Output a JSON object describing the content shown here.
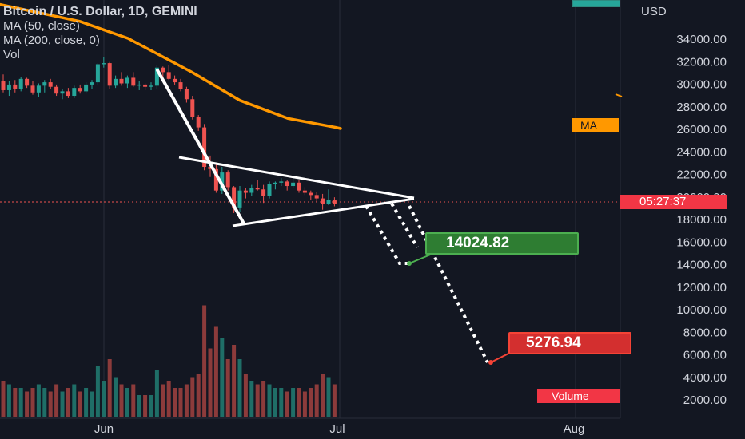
{
  "legend": {
    "title": "Bitcoin / U.S. Dollar, 1D, GEMINI",
    "ma50": "MA (50, close)",
    "ma200": "MA (200, close, 0)",
    "vol": "Vol"
  },
  "price_axis": {
    "currency": "USD",
    "ticks": [
      "34000.00",
      "32000.00",
      "30000.00",
      "28000.00",
      "26000.00",
      "24000.00",
      "22000.00",
      "20000.00",
      "18000.00",
      "16000.00",
      "14000.00",
      "12000.00",
      "10000.00",
      "8000.00",
      "6000.00",
      "4000.00",
      "2000.00"
    ]
  },
  "time_axis": {
    "labels": [
      "Jun",
      "Jul",
      "Aug"
    ]
  },
  "badges": {
    "ma": "MA",
    "countdown": "05:27:37",
    "volume": "Volume",
    "target1": "14024.82",
    "target2": "5276.94"
  },
  "colors": {
    "background": "#131722",
    "up": "#26a69a",
    "down": "#ef5350",
    "ma": "#ff9800",
    "drawing": "#ffffff",
    "target1": "#2e7d32",
    "target2": "#d32f2f"
  },
  "chart_data": {
    "type": "candlestick",
    "symbol": "Bitcoin / U.S. Dollar",
    "interval": "1D",
    "exchange": "GEMINI",
    "ylim": [
      0,
      36000
    ],
    "current_price_countdown": "05:27:37",
    "candles": [
      [
        30200,
        30800,
        29200,
        29400,
        1
      ],
      [
        29400,
        30200,
        28900,
        29900,
        0.9
      ],
      [
        29900,
        30300,
        29200,
        29500,
        0.8
      ],
      [
        29500,
        30600,
        29300,
        30400,
        0.8
      ],
      [
        30400,
        30500,
        29600,
        29800,
        0.7
      ],
      [
        29800,
        30200,
        29000,
        29200,
        0.8
      ],
      [
        29200,
        30000,
        28800,
        29800,
        0.9
      ],
      [
        29800,
        30300,
        29200,
        30100,
        0.8
      ],
      [
        30100,
        30400,
        29500,
        29700,
        0.7
      ],
      [
        29700,
        29900,
        28900,
        29100,
        0.9
      ],
      [
        29100,
        29500,
        28600,
        29300,
        0.7
      ],
      [
        29300,
        29600,
        28700,
        28900,
        0.8
      ],
      [
        28900,
        29800,
        28700,
        29600,
        0.9
      ],
      [
        29600,
        29900,
        29100,
        29300,
        0.7
      ],
      [
        29300,
        30100,
        29100,
        29900,
        0.8
      ],
      [
        29900,
        30300,
        29500,
        30100,
        0.7
      ],
      [
        30100,
        31800,
        29900,
        31700,
        1.4
      ],
      [
        31700,
        32300,
        31400,
        31800,
        1.0
      ],
      [
        31800,
        31900,
        29500,
        29800,
        1.6
      ],
      [
        29800,
        30700,
        29600,
        30400,
        1.1
      ],
      [
        30400,
        31000,
        29800,
        30000,
        0.9
      ],
      [
        30000,
        30700,
        29600,
        30500,
        0.8
      ],
      [
        30500,
        31000,
        29700,
        29800,
        0.9
      ],
      [
        29800,
        30200,
        29400,
        29900,
        0.6
      ],
      [
        29900,
        30000,
        29400,
        29700,
        0.6
      ],
      [
        29700,
        30100,
        29400,
        29800,
        0.6
      ],
      [
        29800,
        31600,
        29500,
        31400,
        1.3
      ],
      [
        31400,
        31500,
        30600,
        31000,
        0.9
      ],
      [
        31000,
        31600,
        30300,
        30400,
        1.0
      ],
      [
        30400,
        30700,
        29900,
        30100,
        0.8
      ],
      [
        30100,
        30400,
        29300,
        29500,
        0.8
      ],
      [
        29500,
        29700,
        28300,
        28600,
        0.9
      ],
      [
        28600,
        28900,
        26800,
        27000,
        1.1
      ],
      [
        27000,
        27200,
        25800,
        26100,
        1.2
      ],
      [
        26100,
        26400,
        22300,
        22600,
        3.1
      ],
      [
        22600,
        23600,
        21700,
        22400,
        1.9
      ],
      [
        22400,
        22900,
        20300,
        20500,
        2.5
      ],
      [
        20500,
        22600,
        20200,
        22100,
        2.2
      ],
      [
        22100,
        22300,
        20500,
        20800,
        1.6
      ],
      [
        20800,
        20900,
        18500,
        19000,
        2.0
      ],
      [
        19000,
        20900,
        18600,
        20500,
        1.6
      ],
      [
        20500,
        20700,
        19800,
        20300,
        1.2
      ],
      [
        20300,
        21000,
        20000,
        20700,
        1.0
      ],
      [
        20700,
        21400,
        20500,
        20600,
        0.9
      ],
      [
        20600,
        21000,
        19400,
        20000,
        1.0
      ],
      [
        20000,
        21300,
        19800,
        21100,
        0.9
      ],
      [
        21100,
        21300,
        20600,
        21200,
        0.8
      ],
      [
        21200,
        21600,
        20900,
        21300,
        0.8
      ],
      [
        21300,
        21400,
        20500,
        20900,
        0.7
      ],
      [
        20900,
        21600,
        20700,
        21200,
        0.8
      ],
      [
        21200,
        21400,
        20300,
        20500,
        0.8
      ],
      [
        20500,
        20800,
        20100,
        20300,
        0.7
      ],
      [
        20300,
        20500,
        19700,
        20100,
        0.8
      ],
      [
        20100,
        20400,
        19500,
        19800,
        0.9
      ],
      [
        19800,
        20200,
        18800,
        19300,
        1.2
      ],
      [
        19300,
        20600,
        19200,
        19700,
        1.1
      ],
      [
        19700,
        19900,
        19100,
        19300,
        0.9
      ]
    ],
    "moving_average_50": [
      [
        0,
        37000
      ],
      [
        100,
        35500
      ],
      [
        160,
        34000
      ],
      [
        240,
        31000
      ],
      [
        300,
        28500
      ],
      [
        360,
        26900
      ],
      [
        420,
        26100
      ],
      [
        426,
        26000
      ]
    ],
    "drawings": {
      "flagpole": [
        [
          31200
        ],
        [
          18200
        ]
      ],
      "pennant_top": [
        22800,
        20000
      ],
      "pennant_bottom": [
        17500,
        20000
      ],
      "projection_targets": [
        14024.82,
        5276.94
      ]
    }
  }
}
